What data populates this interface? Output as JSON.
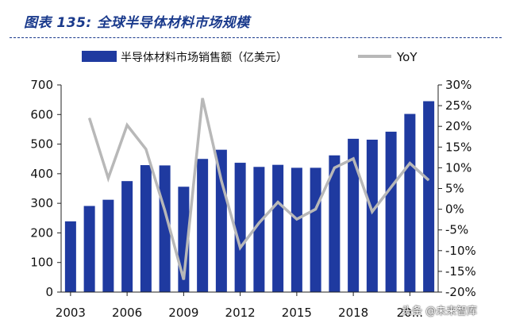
{
  "figure": {
    "title": "图表 135:  全球半导体材料市场规模"
  },
  "watermark": "头条 @未来智库",
  "colors": {
    "bar": "#1f3aa0",
    "line": "#b8b8b8",
    "title": "#1a3a8c"
  },
  "chart_data": {
    "type": "bar",
    "categories": [
      "2003",
      "2004",
      "2005",
      "2006",
      "2007",
      "2008",
      "2009",
      "2010",
      "2011",
      "2012",
      "2013",
      "2014",
      "2015",
      "2016",
      "2017",
      "2018",
      "2019",
      "2020",
      "2021",
      "2022"
    ],
    "x_tick_labels": [
      "2003",
      "2006",
      "2009",
      "2012",
      "2015",
      "2018",
      "20..."
    ],
    "x_tick_indices": [
      0,
      3,
      6,
      9,
      12,
      15,
      18
    ],
    "series": [
      {
        "name": "半导体材料市场销售额（亿美元）",
        "type": "bar",
        "axis": "left",
        "values": [
          239,
          291,
          312,
          375,
          429,
          428,
          356,
          450,
          481,
          437,
          423,
          430,
          420,
          420,
          462,
          518,
          515,
          542,
          602,
          645
        ]
      },
      {
        "name": "YoY",
        "type": "line",
        "axis": "right",
        "values": [
          null,
          22.0,
          7.5,
          20.3,
          14.5,
          -0.3,
          -17.0,
          26.8,
          6.9,
          -9.3,
          -3.3,
          1.7,
          -2.4,
          0.0,
          10.0,
          12.2,
          -0.6,
          5.3,
          11.1,
          7.0
        ]
      }
    ],
    "ylim_left": [
      0,
      700
    ],
    "ylim_right": [
      -20,
      30
    ],
    "left_ticks": [
      "0",
      "100",
      "200",
      "300",
      "400",
      "500",
      "600",
      "700"
    ],
    "right_ticks": [
      "-20%",
      "-15%",
      "-10%",
      "-5%",
      "0%",
      "5%",
      "10%",
      "15%",
      "20%",
      "25%",
      "30%"
    ],
    "legend_position": "top",
    "grid": false
  }
}
